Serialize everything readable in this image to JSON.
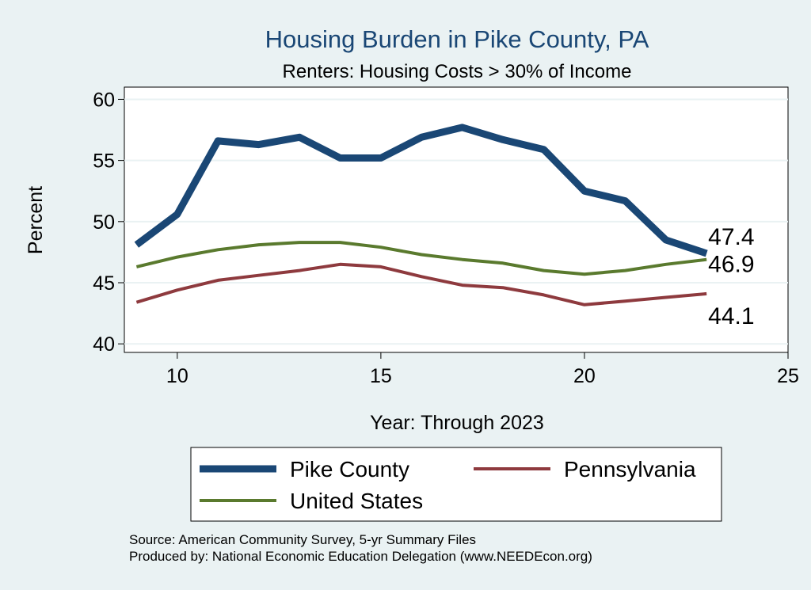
{
  "chart_data": {
    "type": "line",
    "title": "Housing Burden in Pike County, PA",
    "subtitle": "Renters: Housing Costs > 30% of Income",
    "xlabel": "Year: Through 2023",
    "ylabel": "Percent",
    "xlim": [
      8.7,
      25
    ],
    "ylim": [
      39.3,
      61
    ],
    "xticks": [
      10,
      15,
      20,
      25
    ],
    "yticks": [
      40,
      45,
      50,
      55,
      60
    ],
    "grid": true,
    "legend_position": "bottom",
    "x": [
      9,
      10,
      11,
      12,
      13,
      14,
      15,
      16,
      17,
      18,
      19,
      20,
      21,
      22,
      23
    ],
    "series": [
      {
        "name": "Pike County",
        "color": "#1a4775",
        "values": [
          48.1,
          50.6,
          56.6,
          56.3,
          56.9,
          55.2,
          55.2,
          56.9,
          57.7,
          56.7,
          55.9,
          52.5,
          51.7,
          48.5,
          47.4
        ],
        "end_label": "47.4"
      },
      {
        "name": "Pennsylvania",
        "color": "#8e3a3e",
        "values": [
          43.4,
          44.4,
          45.2,
          45.6,
          46.0,
          46.5,
          46.3,
          45.5,
          44.8,
          44.6,
          44.0,
          43.2,
          43.5,
          43.8,
          44.1
        ],
        "end_label": "44.1"
      },
      {
        "name": "United States",
        "color": "#5a7a2e",
        "values": [
          46.3,
          47.1,
          47.7,
          48.1,
          48.3,
          48.3,
          47.9,
          47.3,
          46.9,
          46.6,
          46.0,
          45.7,
          46.0,
          46.5,
          46.9
        ],
        "end_label": "46.9"
      }
    ],
    "notes": [
      "Source: American Community Survey, 5-yr Summary Files",
      "Produced by: National Economic Education Delegation (www.NEEDEcon.org)"
    ]
  }
}
